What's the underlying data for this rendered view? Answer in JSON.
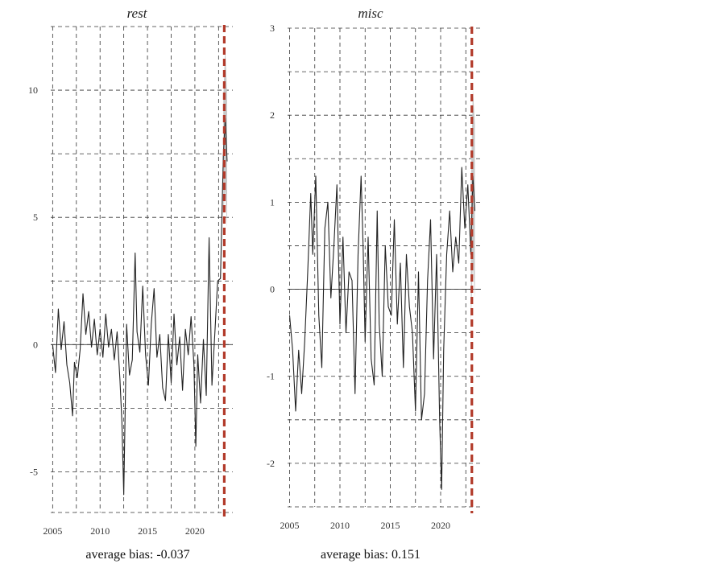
{
  "chart_data": [
    {
      "type": "line",
      "title": "rest",
      "xlabel": "",
      "ylabel": "",
      "xlim": [
        2004.8,
        2024.0
      ],
      "ylim": [
        -6.6,
        12.5
      ],
      "x_ticks": [
        2005,
        2010,
        2015,
        2020
      ],
      "x_tick_labels": [
        "2005",
        "2010",
        "2015",
        "2020"
      ],
      "y_ticks": [
        -5,
        0,
        5,
        10
      ],
      "y_tick_labels": [
        "-5",
        "0",
        "5",
        "10"
      ],
      "x_grid": [
        2005,
        2007.5,
        2010,
        2012.5,
        2015,
        2017.5,
        2020,
        2022.5
      ],
      "y_grid": [
        -6.6,
        -5,
        -2.5,
        0,
        2.5,
        5,
        7.5,
        10,
        12.5
      ],
      "grid": true,
      "zero_line": true,
      "forecast_start": 2023.1,
      "footer": "average bias: -0.037",
      "series": [
        {
          "values_x": [
            2005.0,
            2005.3,
            2005.6,
            2005.9,
            2006.2,
            2006.5,
            2006.8,
            2007.1,
            2007.3,
            2007.6,
            2007.9,
            2008.2,
            2008.5,
            2008.8,
            2009.1,
            2009.4,
            2009.7,
            2010.0,
            2010.3,
            2010.6,
            2010.9,
            2011.2,
            2011.5,
            2011.8,
            2012.1,
            2012.3,
            2012.5,
            2012.8,
            2013.1,
            2013.4,
            2013.7,
            2013.9,
            2014.2,
            2014.5,
            2014.8,
            2015.1,
            2015.4,
            2015.7,
            2016.0,
            2016.3,
            2016.6,
            2016.9,
            2017.2,
            2017.5,
            2017.8,
            2018.1,
            2018.4,
            2018.7,
            2019.0,
            2019.3,
            2019.6,
            2019.9,
            2020.1,
            2020.3,
            2020.6,
            2020.9,
            2021.2,
            2021.5,
            2021.8,
            2022.1,
            2022.4,
            2022.7,
            2023.0,
            2023.2,
            2023.4
          ],
          "values": [
            0.0,
            -1.1,
            1.4,
            -0.2,
            0.9,
            -0.8,
            -1.5,
            -2.8,
            -0.7,
            -1.3,
            -0.2,
            2.0,
            0.4,
            1.3,
            -0.1,
            1.0,
            -0.4,
            0.6,
            -0.5,
            1.2,
            -0.1,
            0.6,
            -0.6,
            0.5,
            -1.4,
            -3.0,
            -5.9,
            0.8,
            -1.2,
            -0.6,
            3.6,
            0.5,
            -0.3,
            2.3,
            -0.4,
            -1.6,
            0.8,
            2.2,
            -0.5,
            0.4,
            -1.7,
            -2.2,
            0.4,
            -1.5,
            1.2,
            -0.8,
            0.3,
            -1.8,
            0.6,
            -0.4,
            1.1,
            -0.8,
            -4.0,
            -0.4,
            -2.3,
            0.2,
            -2.0,
            4.2,
            -1.6,
            0.4,
            2.5,
            2.6,
            7.4,
            8.9,
            7.2
          ],
          "band": [
            0,
            0,
            0,
            0,
            0,
            0,
            0,
            0,
            0,
            0,
            0,
            0,
            0,
            0,
            0,
            0,
            0,
            0,
            0,
            0,
            0,
            0,
            0,
            0,
            0,
            0,
            0,
            0,
            0,
            0,
            0,
            0,
            0,
            0,
            0,
            0,
            0,
            0,
            0,
            0,
            0,
            0,
            0,
            0,
            0,
            0,
            0,
            0,
            0,
            0,
            0,
            0,
            0,
            0,
            0,
            0,
            0,
            0,
            0,
            0,
            0,
            0,
            2.3,
            2.8,
            2.6
          ]
        }
      ]
    },
    {
      "type": "line",
      "title": "misc",
      "xlabel": "",
      "ylabel": "",
      "xlim": [
        2004.8,
        2024.0
      ],
      "ylim": [
        -2.5,
        3.0
      ],
      "x_ticks": [
        2005,
        2010,
        2015,
        2020
      ],
      "x_tick_labels": [
        "2005",
        "2010",
        "2015",
        "2020"
      ],
      "y_ticks": [
        -2,
        -1,
        0,
        1,
        2,
        3
      ],
      "y_tick_labels": [
        "-2",
        "-1",
        "0",
        "1",
        "2",
        "3"
      ],
      "x_grid": [
        2005,
        2007.5,
        2010,
        2012.5,
        2015,
        2017.5,
        2020,
        2022.5
      ],
      "y_grid": [
        -2.5,
        -2,
        -1.5,
        -1,
        -0.5,
        0,
        0.5,
        1,
        1.5,
        2,
        2.5,
        3
      ],
      "grid": true,
      "zero_line": true,
      "forecast_start": 2023.1,
      "footer": "average bias: 0.151",
      "series": [
        {
          "values_x": [
            2005.0,
            2005.3,
            2005.6,
            2005.9,
            2006.2,
            2006.5,
            2006.8,
            2007.1,
            2007.3,
            2007.6,
            2007.9,
            2008.2,
            2008.5,
            2008.8,
            2009.1,
            2009.4,
            2009.7,
            2010.0,
            2010.3,
            2010.6,
            2010.9,
            2011.2,
            2011.5,
            2011.8,
            2012.1,
            2012.3,
            2012.5,
            2012.8,
            2013.1,
            2013.4,
            2013.7,
            2013.9,
            2014.2,
            2014.5,
            2014.8,
            2015.1,
            2015.4,
            2015.7,
            2016.0,
            2016.3,
            2016.6,
            2016.9,
            2017.2,
            2017.5,
            2017.8,
            2018.1,
            2018.4,
            2018.7,
            2019.0,
            2019.3,
            2019.6,
            2019.9,
            2020.1,
            2020.3,
            2020.6,
            2020.9,
            2021.2,
            2021.5,
            2021.8,
            2022.1,
            2022.4,
            2022.7,
            2023.0,
            2023.2,
            2023.4
          ],
          "values": [
            -0.3,
            -0.7,
            -1.4,
            -0.7,
            -1.2,
            -0.6,
            0.2,
            1.1,
            0.4,
            1.3,
            -0.3,
            -0.9,
            0.7,
            1.0,
            -0.1,
            0.5,
            1.2,
            -0.4,
            0.6,
            -0.5,
            0.2,
            0.1,
            -1.2,
            0.4,
            1.3,
            0.5,
            -0.6,
            0.6,
            -0.8,
            -1.1,
            0.9,
            -0.4,
            -1.0,
            0.5,
            -0.2,
            -0.3,
            0.8,
            -0.4,
            0.3,
            -0.9,
            0.4,
            -0.2,
            -0.5,
            -1.4,
            0.2,
            -1.5,
            -1.2,
            0.1,
            0.8,
            -0.8,
            0.4,
            -1.5,
            -2.3,
            -0.7,
            0.4,
            0.9,
            0.2,
            0.6,
            0.3,
            1.4,
            0.7,
            1.2,
            0.4,
            1.3,
            0.9
          ],
          "band": [
            0,
            0,
            0,
            0,
            0,
            0,
            0,
            0,
            0,
            0,
            0,
            0,
            0,
            0,
            0,
            0,
            0,
            0,
            0,
            0,
            0,
            0,
            0,
            0,
            0,
            0,
            0,
            0,
            0,
            0,
            0,
            0,
            0,
            0,
            0,
            0,
            0,
            0,
            0,
            0,
            0,
            0,
            0,
            0,
            0,
            0,
            0,
            0,
            0,
            0,
            0,
            0,
            0,
            0,
            0,
            0,
            0,
            0,
            0,
            0,
            0,
            0,
            0.8,
            1.0,
            1.0
          ]
        }
      ]
    }
  ],
  "colors": {
    "line": "#222222",
    "grid": "#333333",
    "band": "#c8c8c8",
    "forecast": "#b23a2a"
  }
}
